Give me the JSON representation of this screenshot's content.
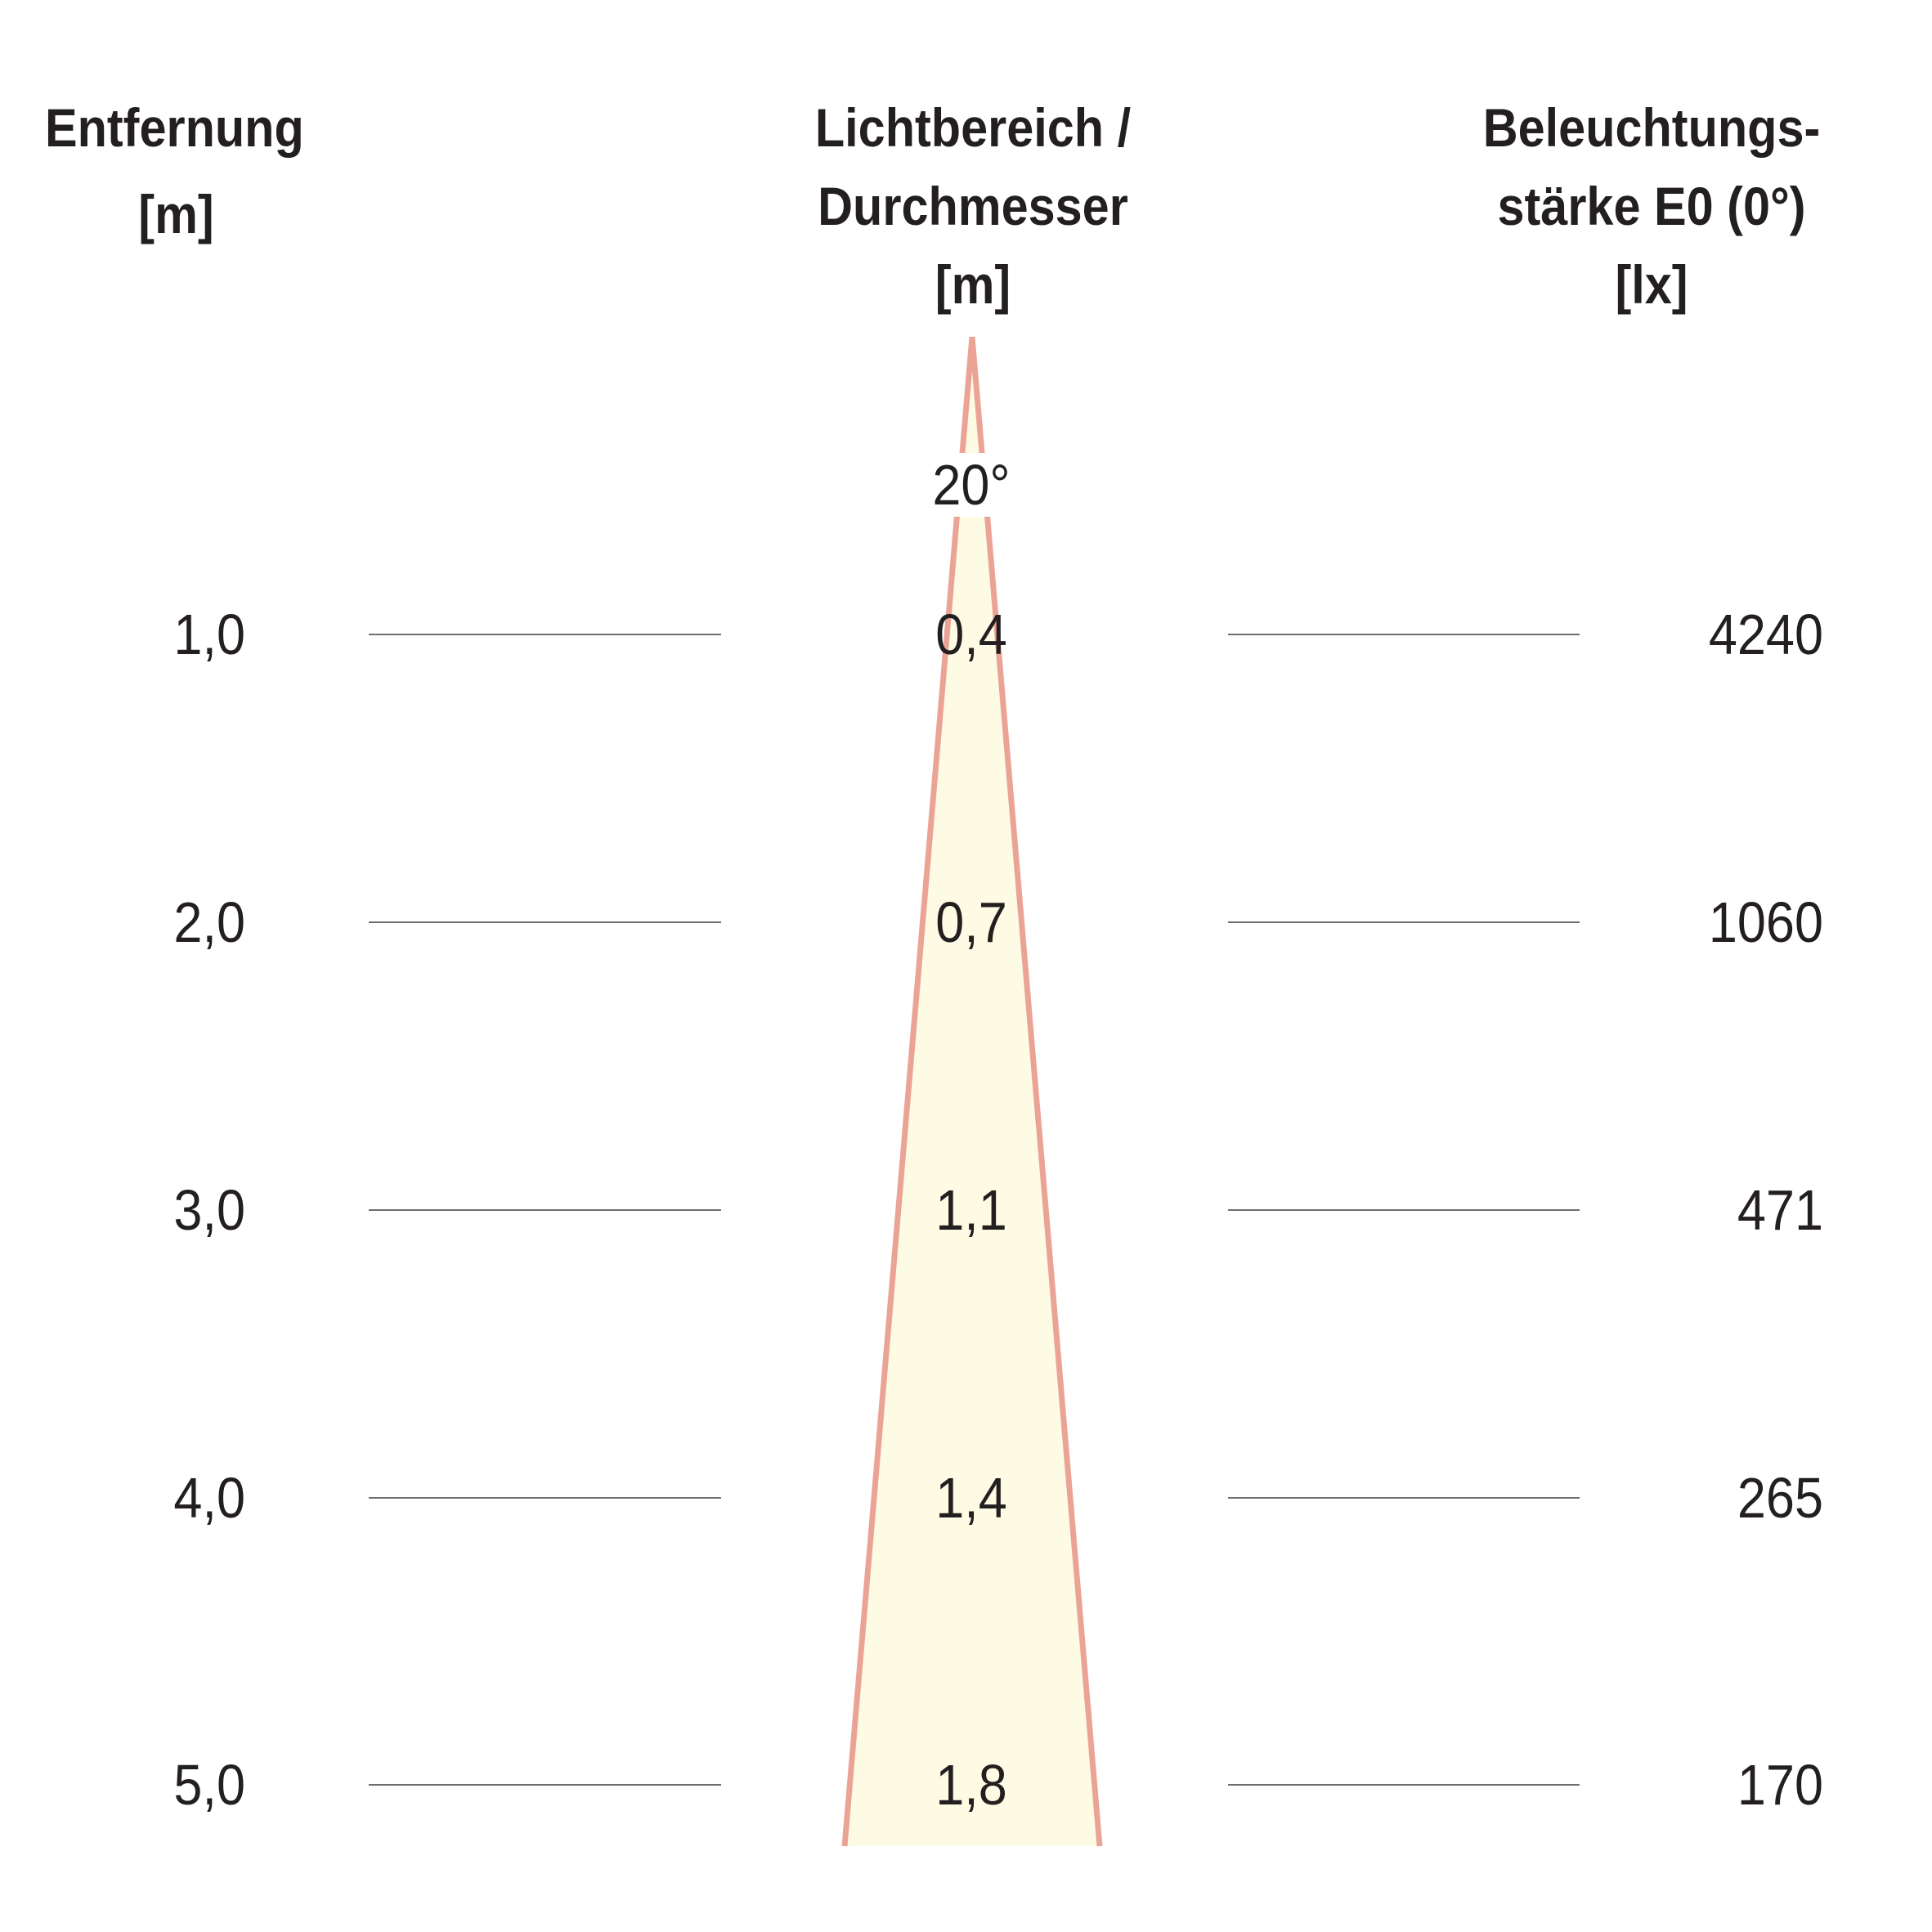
{
  "headers": {
    "distance": {
      "line1": "Entfernung",
      "unit": "[m]"
    },
    "diameter": {
      "line1": "Lichtbereich /",
      "line2": "Durchmesser",
      "unit": "[m]"
    },
    "illuminance": {
      "line1": "Beleuchtungs-",
      "line2": "stärke E0 (0°)",
      "unit": "[lx]"
    }
  },
  "beam": {
    "angle_label": "20°",
    "angle_deg": 20,
    "fill_color": "#fdfbe4",
    "edge_color": "#eba396"
  },
  "rows": [
    {
      "distance": "1,0",
      "diameter": "0,4",
      "illuminance": "4240"
    },
    {
      "distance": "2,0",
      "diameter": "0,7",
      "illuminance": "1060"
    },
    {
      "distance": "3,0",
      "diameter": "1,1",
      "illuminance": "471"
    },
    {
      "distance": "4,0",
      "diameter": "1,4",
      "illuminance": "265"
    },
    {
      "distance": "5,0",
      "diameter": "1,8",
      "illuminance": "170"
    }
  ],
  "colors": {
    "text": "#231f20",
    "guide_line": "#6d6e71"
  }
}
